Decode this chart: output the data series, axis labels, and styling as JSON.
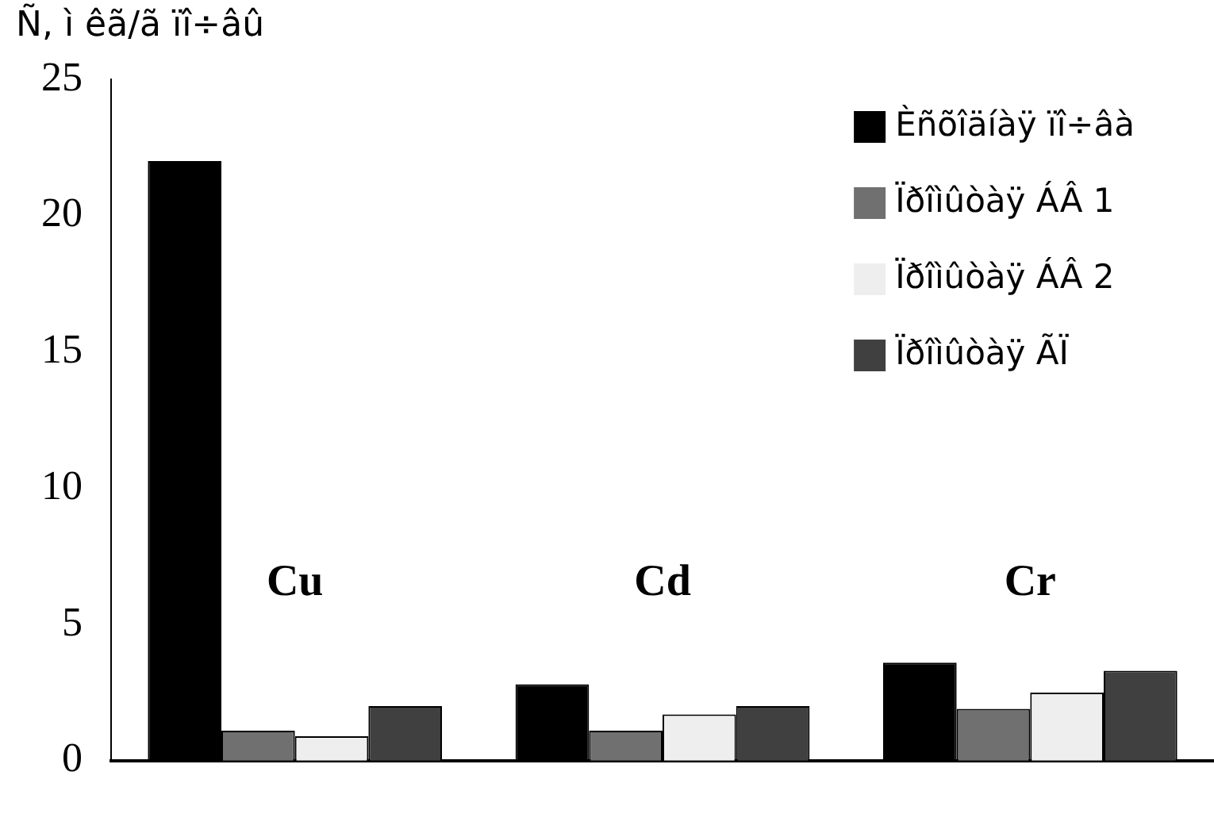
{
  "chart_data": {
    "type": "bar",
    "ylabel": "Ñ, ì êã/ã ïî÷âû",
    "categories": [
      "Cu",
      "Cd",
      "Cr"
    ],
    "series": [
      {
        "name": "Èñõîäíàÿ ïî÷âà",
        "color": "#000000",
        "values": [
          22.0,
          2.8,
          3.6
        ]
      },
      {
        "name": "Ïðîìûòàÿ ÁÂ 1",
        "color": "#707070",
        "values": [
          1.1,
          1.1,
          1.9
        ]
      },
      {
        "name": "Ïðîìûòàÿ ÁÂ 2",
        "color": "#eeeeee",
        "values": [
          0.9,
          1.7,
          2.5
        ]
      },
      {
        "name": "Ïðîìûòàÿ ÃÏ",
        "color": "#404040",
        "values": [
          2.0,
          2.0,
          3.3
        ]
      }
    ],
    "ylim": [
      0,
      25
    ],
    "yticks": [
      0,
      5,
      10,
      15,
      20,
      25
    ],
    "grid": false,
    "legend": "top right"
  }
}
